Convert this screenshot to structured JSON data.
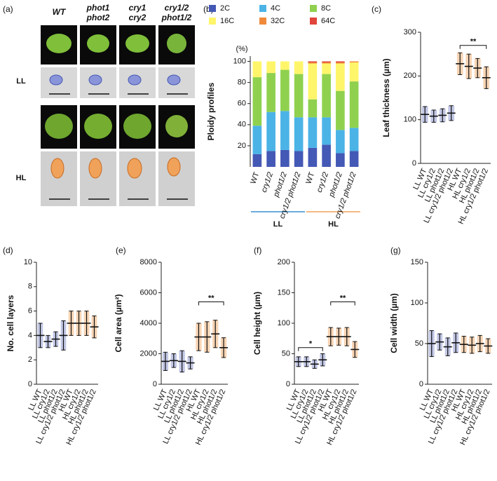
{
  "figure_a": {
    "panel_label": "(a)",
    "columns": [
      [
        "WT"
      ],
      [
        "phot1",
        "phot2"
      ],
      [
        "cry1",
        "cry2"
      ],
      [
        "cry1/2",
        "phot1/2"
      ]
    ],
    "rows": [
      "LL",
      "HL"
    ]
  },
  "chart_data": [
    {
      "type": "stacked-bar",
      "panel_label": "(b)",
      "ylabel": "Ploidy profiles",
      "yunit": "(%)",
      "categories": [
        "WT",
        "cry1/2",
        "phot1/2",
        "cry1/2 phot1/2",
        "WT",
        "cry1/2",
        "phot1/2",
        "cry1/2 phot1/2"
      ],
      "groups": [
        {
          "label": "LL",
          "color": "#3a8fd0"
        },
        {
          "label": "HL",
          "color": "#f0a25a"
        }
      ],
      "series": [
        {
          "name": "2C",
          "color": "#4458b5",
          "values": [
            12,
            15,
            16,
            15,
            18,
            21,
            13,
            15
          ]
        },
        {
          "name": "4C",
          "color": "#4bb3e6",
          "values": [
            27,
            37,
            37,
            32,
            29,
            26,
            22,
            22
          ]
        },
        {
          "name": "8C",
          "color": "#8fd14f",
          "values": [
            46,
            37,
            39,
            41,
            17,
            41,
            37,
            44
          ]
        },
        {
          "name": "16C",
          "color": "#fff56b",
          "values": [
            15,
            11,
            8,
            12,
            34,
            10,
            26,
            18
          ]
        },
        {
          "name": "32C",
          "color": "#f08a3a",
          "values": [
            0,
            0,
            0,
            0,
            1,
            1,
            1,
            1
          ]
        },
        {
          "name": "64C",
          "color": "#e0443a",
          "values": [
            0,
            0,
            0,
            0,
            1,
            1,
            1,
            0
          ]
        }
      ],
      "ylim": [
        0,
        105
      ],
      "yticks": [
        20,
        40,
        60,
        80,
        100
      ]
    },
    {
      "type": "dot",
      "panel_label": "(c)",
      "ylabel": "Leaf thickness (µm)",
      "categories": [
        "LL WT",
        "LL cry1/2",
        "LL phot1/2",
        "LL cry1/2 phot1/2",
        "HL WT",
        "HL cry1/2",
        "HL phot1/2",
        "HL cry1/2 phot1/2"
      ],
      "colors": [
        "#7b86c8",
        "#7b86c8",
        "#7b86c8",
        "#7b86c8",
        "#f0a25a",
        "#f0a25a",
        "#f0a25a",
        "#f0a25a"
      ],
      "values": [
        112,
        108,
        110,
        115,
        228,
        222,
        218,
        196
      ],
      "errors": [
        18,
        14,
        15,
        17,
        25,
        28,
        22,
        25
      ],
      "annotations": [
        {
          "text": "**",
          "from": 4,
          "to": 7,
          "y": 270
        }
      ],
      "ylim": [
        0,
        300
      ],
      "yticks": [
        0,
        100,
        200,
        300
      ]
    },
    {
      "type": "dot",
      "panel_label": "(d)",
      "ylabel": "No. cell layers",
      "categories": [
        "LL WT",
        "LL cry1/2",
        "LL phot1/2",
        "LL cry1/2 phot1/2",
        "HL WT",
        "HL cry1/2",
        "HL phot1/2",
        "HL cry1/2 phot1/2"
      ],
      "colors": [
        "#7b86c8",
        "#7b86c8",
        "#7b86c8",
        "#7b86c8",
        "#f0a25a",
        "#f0a25a",
        "#f0a25a",
        "#f0a25a"
      ],
      "values": [
        4,
        3.5,
        3.7,
        4,
        5,
        5,
        5,
        4.7
      ],
      "errors": [
        1,
        0.5,
        0.6,
        1.2,
        1,
        1,
        1,
        0.9
      ],
      "annotations": [],
      "ylim": [
        0,
        10
      ],
      "yticks": [
        0,
        2,
        4,
        6,
        8,
        10
      ]
    },
    {
      "type": "dot",
      "panel_label": "(e)",
      "ylabel": "Cell area (µm²)",
      "categories": [
        "LL WT",
        "LL cry1/2",
        "LL phot1/2",
        "LL cry1/2 phot1/2",
        "HL WT",
        "HL cry1/2",
        "HL phot1/2",
        "HL cry1/2 phot1/2"
      ],
      "colors": [
        "#7b86c8",
        "#7b86c8",
        "#7b86c8",
        "#7b86c8",
        "#f0a25a",
        "#f0a25a",
        "#f0a25a",
        "#f0a25a"
      ],
      "values": [
        1500,
        1550,
        1500,
        1400,
        3100,
        3100,
        3300,
        2400
      ],
      "errors": [
        600,
        450,
        700,
        400,
        900,
        1000,
        900,
        650
      ],
      "annotations": [
        {
          "text": "**",
          "from": 4,
          "to": 7,
          "y": 5400
        }
      ],
      "ylim": [
        0,
        8000
      ],
      "yticks": [
        0,
        2000,
        4000,
        6000,
        8000
      ]
    },
    {
      "type": "dot",
      "panel_label": "(f)",
      "ylabel": "Cell height (µm)",
      "categories": [
        "LL WT",
        "LL cry1/2",
        "LL phot1/2",
        "LL cry1/2 phot1/2",
        "HL WT",
        "HL cry1/2",
        "HL phot1/2",
        "HL cry1/2 phot1/2"
      ],
      "colors": [
        "#7b86c8",
        "#7b86c8",
        "#7b86c8",
        "#7b86c8",
        "#f0a25a",
        "#f0a25a",
        "#f0a25a",
        "#f0a25a"
      ],
      "values": [
        37,
        37,
        33,
        40,
        78,
        78,
        78,
        57
      ],
      "errors": [
        8,
        8,
        7,
        10,
        15,
        14,
        15,
        13
      ],
      "annotations": [
        {
          "text": "*",
          "from": 0,
          "to": 3,
          "y": 60
        },
        {
          "text": "**",
          "from": 4,
          "to": 7,
          "y": 135
        }
      ],
      "ylim": [
        0,
        200
      ],
      "yticks": [
        0,
        50,
        100,
        150,
        200
      ]
    },
    {
      "type": "dot",
      "panel_label": "(g)",
      "ylabel": "Cell width (µm)",
      "categories": [
        "LL WT",
        "LL cry1/2",
        "LL phot1/2",
        "LL cry1/2 phot1/2",
        "HL WT",
        "HL cry1/2",
        "HL phot1/2",
        "HL cry1/2 phot1/2"
      ],
      "colors": [
        "#7b86c8",
        "#7b86c8",
        "#7b86c8",
        "#7b86c8",
        "#f0a25a",
        "#f0a25a",
        "#f0a25a",
        "#f0a25a"
      ],
      "values": [
        50,
        52,
        46,
        51,
        49,
        48,
        50,
        47
      ],
      "errors": [
        16,
        10,
        11,
        12,
        10,
        10,
        10,
        9
      ],
      "annotations": [],
      "ylim": [
        0,
        150
      ],
      "yticks": [
        0,
        50,
        100,
        150
      ]
    }
  ]
}
